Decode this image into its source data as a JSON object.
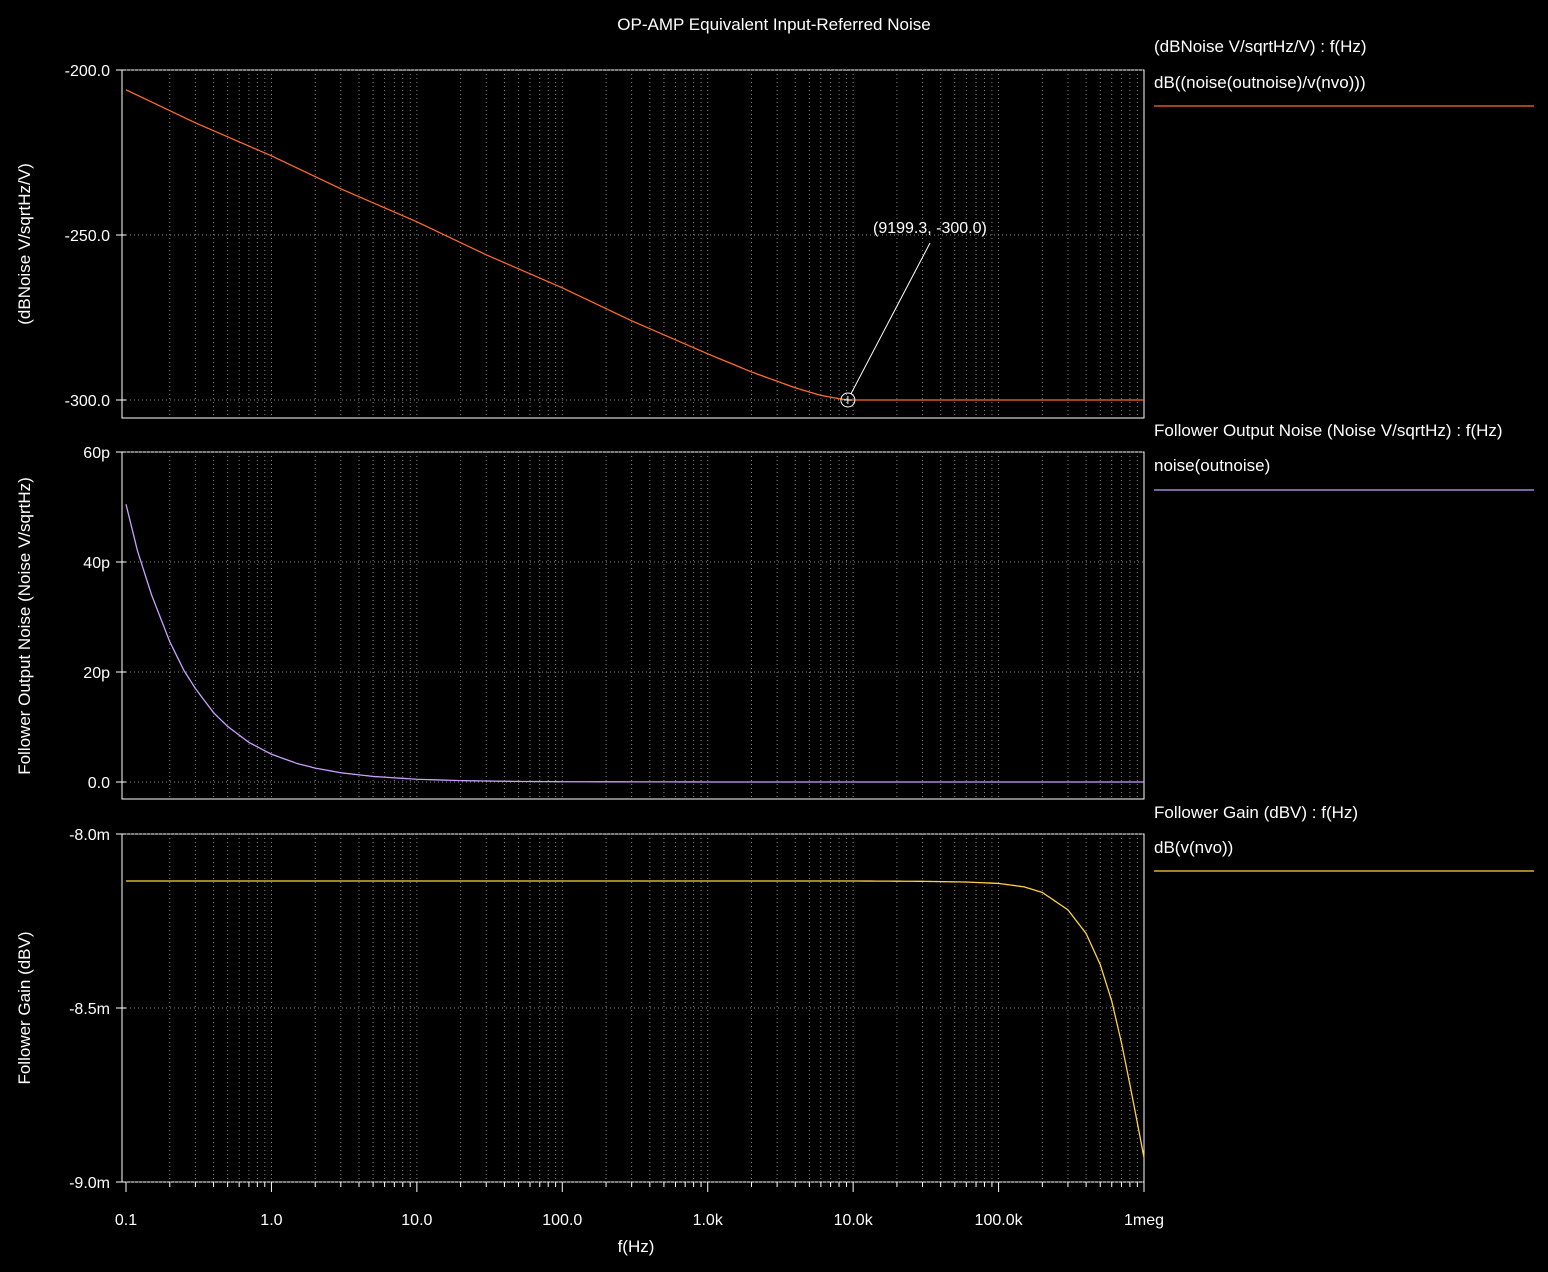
{
  "chart_data": {
    "title": "OP-AMP Equivalent Input-Referred Noise",
    "xlabel": "f(Hz)",
    "x_scale": "log",
    "xlim": [
      0.1,
      1000000
    ],
    "x_tick_labels": [
      "0.1",
      "1.0",
      "10.0",
      "100.0",
      "1.0k",
      "10.0k",
      "100.0k",
      "1meg"
    ],
    "panels": [
      {
        "type": "line",
        "ylabel": "(dBNoise V/sqrtHz/V)",
        "legend_title": "(dBNoise V/sqrtHz/V) : f(Hz)",
        "ylim": [
          -305,
          -199
        ],
        "y_ticks": [
          -200,
          -250,
          -300
        ],
        "y_tick_labels": [
          "-200.0",
          "-250.0",
          "-300.0"
        ],
        "series": [
          {
            "name": "dB((noise(outnoise)/v(nvo)))",
            "color": "#ff6a2a",
            "x": [
              0.1,
              0.3,
              1,
              3,
              10,
              30,
              100,
              300,
              1000,
              2000,
              4000,
              6000,
              8000,
              9199.3,
              20000,
              100000,
              1000000
            ],
            "y": [
              -206,
              -216,
              -226,
              -236,
              -246,
              -256,
              -266,
              -276,
              -286,
              -291.5,
              -296.3,
              -298.6,
              -299.6,
              -300.0,
              -300.0,
              -300.0,
              -300.0
            ]
          }
        ],
        "annotation": {
          "label": "(9199.3, -300.0)",
          "x": 9199.3,
          "y": -300.0
        }
      },
      {
        "type": "line",
        "ylabel": "Follower Output Noise (Noise V/sqrtHz)",
        "legend_title": "Follower Output Noise (Noise V/sqrtHz) : f(Hz)",
        "ylim": [
          -5,
          60
        ],
        "y_ticks": [
          0,
          20,
          40,
          60
        ],
        "y_tick_labels": [
          "0.0",
          "20p",
          "40p",
          "60p"
        ],
        "series": [
          {
            "name": "noise(outnoise)",
            "color": "#c9a0ff",
            "x": [
              0.1,
              0.12,
              0.15,
              0.2,
              0.25,
              0.3,
              0.4,
              0.5,
              0.7,
              1,
              1.5,
              2,
              3,
              5,
              10,
              20,
              50,
              100,
              1000,
              10000,
              100000,
              1000000
            ],
            "y": [
              50.5,
              42,
              34,
              25.5,
              20.3,
              17,
              12.6,
              10.1,
              7.2,
              5.05,
              3.37,
              2.53,
              1.68,
              1.01,
              0.5,
              0.25,
              0.1,
              0.05,
              0.005,
              0.0005,
              0,
              0
            ]
          }
        ]
      },
      {
        "type": "line",
        "ylabel": "Follower Gain (dBV)",
        "legend_title": "Follower Gain (dBV) : f(Hz)",
        "ylim": [
          -9.0,
          -8.0
        ],
        "y_ticks": [
          -8.0,
          -8.5,
          -9.0
        ],
        "y_tick_labels": [
          "-8.0m",
          "-8.5m",
          "-9.0m"
        ],
        "series": [
          {
            "name": "dB(v(nvo))",
            "color": "#ffd23c",
            "x": [
              0.1,
              10000,
              30000,
              60000,
              100000,
              150000,
              200000,
              300000,
              400000,
              500000,
              600000,
              700000,
              800000,
              900000,
              1000000
            ],
            "y": [
              -8.135,
              -8.135,
              -8.136,
              -8.138,
              -8.142,
              -8.152,
              -8.168,
              -8.218,
              -8.286,
              -8.375,
              -8.48,
              -8.6,
              -8.72,
              -8.83,
              -8.93
            ]
          }
        ]
      }
    ]
  }
}
